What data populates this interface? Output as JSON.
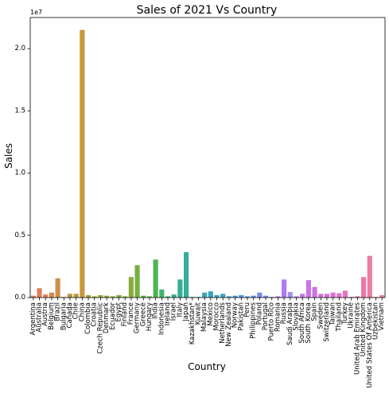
{
  "chart_data": {
    "type": "bar",
    "title": "Sales of 2021 Vs Country",
    "xlabel": "Country",
    "ylabel": "Sales",
    "y_multiplier": "1e7",
    "ylim": [
      0,
      22500000
    ],
    "yticks": [
      0,
      5000000,
      10000000,
      15000000,
      20000000
    ],
    "ytick_labels": [
      "0.0",
      "0.5",
      "1.0",
      "1.5",
      "2.0"
    ],
    "grid": false,
    "legend": "none",
    "categories": [
      "Argentina",
      "Australia",
      "Austria",
      "Belgium",
      "Brazil",
      "Bulgaria",
      "Canada",
      "Chile",
      "China",
      "Colombia",
      "Croatia",
      "Czech Republic",
      "Denmark",
      "Ecuador",
      "Egypt",
      "Finland",
      "France",
      "Germany",
      "Greece",
      "Hungary",
      "India",
      "Indonesia",
      "Ireland",
      "Israel",
      "Italy",
      "Japan",
      "Kazakhstan*",
      "Kuwait",
      "Malaysia",
      "Mexico",
      "Morocco",
      "Netherlands",
      "New Zealand",
      "Norway",
      "Pakistan",
      "Peru",
      "Philippines",
      "Poland",
      "Portugal",
      "Puerto Rico",
      "Romania",
      "Russia",
      "Saudi Arabia",
      "Slovakia",
      "South Africa",
      "South Korea",
      "Spain",
      "Sweden",
      "Switzerland",
      "Taiwan",
      "Thailand",
      "Turkey",
      "Ukraine",
      "United Arab Emirates",
      "United Kingdom",
      "United States Of America",
      "Uzbekistan",
      "Vietnam"
    ],
    "values": [
      150000,
      750000,
      250000,
      400000,
      1550000,
      50000,
      300000,
      300000,
      21500000,
      200000,
      100000,
      200000,
      150000,
      100000,
      200000,
      100000,
      1650000,
      2600000,
      150000,
      100000,
      3050000,
      650000,
      100000,
      250000,
      1450000,
      3650000,
      50000,
      50000,
      400000,
      500000,
      200000,
      300000,
      100000,
      150000,
      200000,
      100000,
      150000,
      400000,
      150000,
      50000,
      100000,
      1450000,
      450000,
      100000,
      300000,
      1400000,
      850000,
      300000,
      300000,
      400000,
      350000,
      550000,
      50000,
      100000,
      1650000,
      3350000,
      50000,
      200000
    ],
    "colors": [
      "#e1816a",
      "#e07f5b",
      "#dc8452",
      "#d48a4d",
      "#cc8f48",
      "#c49344",
      "#bd9841",
      "#b69b3e",
      "#c8973f",
      "#ad9f3c",
      "#a5a33b",
      "#9ea63a",
      "#96a839",
      "#8dab38",
      "#82ad37",
      "#77b035",
      "#8bab3a",
      "#74b040",
      "#62b339",
      "#55b53f",
      "#4bb553",
      "#3fb36e",
      "#3cb27c",
      "#39b088",
      "#36ae92",
      "#35ac9c",
      "#35aba3",
      "#36a9aa",
      "#38a7b1",
      "#3aa5b8",
      "#3da3be",
      "#40a0c6",
      "#449ed0",
      "#499bda",
      "#5098e4",
      "#5994ea",
      "#6690ed",
      "#758bee",
      "#8486ef",
      "#9381ef",
      "#a17cef",
      "#ad7aef",
      "#a295e8",
      "#b87bee",
      "#c177ec",
      "#c875e8",
      "#cf73e3",
      "#d671df",
      "#dc6fd9",
      "#e16fd3",
      "#e370cb",
      "#e571c3",
      "#e673bb",
      "#e775b3",
      "#e879aa",
      "#e97fa1",
      "#e98599",
      "#ea8a92"
    ]
  }
}
